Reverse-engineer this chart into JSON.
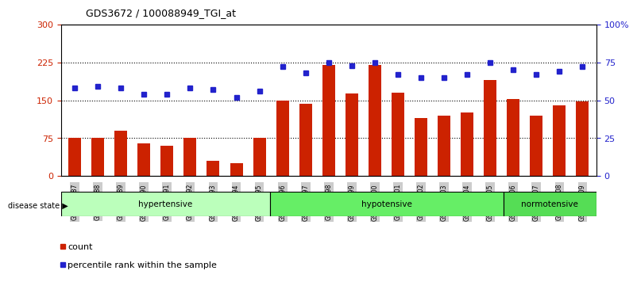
{
  "title": "GDS3672 / 100088949_TGI_at",
  "samples": [
    "GSM493487",
    "GSM493488",
    "GSM493489",
    "GSM493490",
    "GSM493491",
    "GSM493492",
    "GSM493493",
    "GSM493494",
    "GSM493495",
    "GSM493496",
    "GSM493497",
    "GSM493498",
    "GSM493499",
    "GSM493500",
    "GSM493501",
    "GSM493502",
    "GSM493503",
    "GSM493504",
    "GSM493505",
    "GSM493506",
    "GSM493507",
    "GSM493508",
    "GSM493509"
  ],
  "counts": [
    75,
    75,
    90,
    65,
    60,
    75,
    30,
    25,
    75,
    150,
    143,
    220,
    163,
    220,
    165,
    115,
    120,
    125,
    190,
    152,
    120,
    140,
    147
  ],
  "percentile_ranks": [
    58,
    59,
    58,
    54,
    54,
    58,
    57,
    52,
    56,
    72,
    68,
    75,
    73,
    75,
    67,
    65,
    65,
    67,
    75,
    70,
    67,
    69,
    72
  ],
  "bar_color": "#cc2200",
  "dot_color": "#2222cc",
  "left_ylim": [
    0,
    300
  ],
  "right_ylim": [
    0,
    100
  ],
  "left_yticks": [
    0,
    75,
    150,
    225,
    300
  ],
  "right_yticks": [
    0,
    25,
    50,
    75,
    100
  ],
  "right_yticklabels": [
    "0",
    "25",
    "50",
    "75",
    "100%"
  ],
  "hline_values": [
    75,
    150,
    225
  ],
  "groups_config": [
    {
      "label": "hypertensive",
      "start": 0,
      "end": 9,
      "color": "#bbffbb"
    },
    {
      "label": "hypotensive",
      "start": 9,
      "end": 19,
      "color": "#66ee66"
    },
    {
      "label": "normotensive",
      "start": 19,
      "end": 23,
      "color": "#55dd55"
    }
  ],
  "disease_state_label": "disease state",
  "legend_count_label": "count",
  "legend_pct_label": "percentile rank within the sample"
}
